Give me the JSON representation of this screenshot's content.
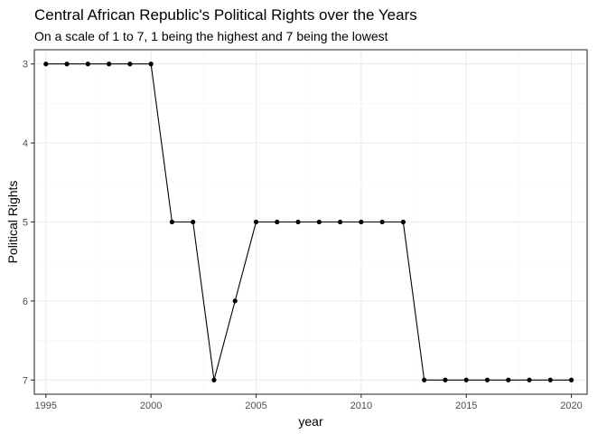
{
  "chart_data": {
    "type": "line",
    "title": "Central African Republic's Political Rights over the Years",
    "subtitle": "On a scale of 1 to 7, 1 being the highest and 7 being the lowest",
    "xlabel": "year",
    "ylabel": "Political Rights",
    "x": [
      1995,
      1996,
      1997,
      1998,
      1999,
      2000,
      2001,
      2002,
      2003,
      2004,
      2005,
      2006,
      2007,
      2008,
      2009,
      2010,
      2011,
      2012,
      2013,
      2014,
      2015,
      2016,
      2017,
      2018,
      2019,
      2020
    ],
    "y": [
      3,
      3,
      3,
      3,
      3,
      3,
      5,
      5,
      7,
      6,
      5,
      5,
      5,
      5,
      5,
      5,
      5,
      5,
      7,
      7,
      7,
      7,
      7,
      7,
      7,
      7
    ],
    "xlim": [
      1994.45,
      2020.75
    ],
    "ylim": [
      2.82,
      7.18
    ],
    "y_reversed": true,
    "x_ticks": [
      1995,
      2000,
      2005,
      2010,
      2015,
      2020
    ],
    "y_ticks": [
      3,
      4,
      5,
      6,
      7
    ],
    "grid": true,
    "colors": {
      "line": "#000000",
      "point": "#000000",
      "grid_major": "#ebebeb",
      "grid_minor": "#f5f5f5",
      "panel_border": "#333333"
    }
  }
}
